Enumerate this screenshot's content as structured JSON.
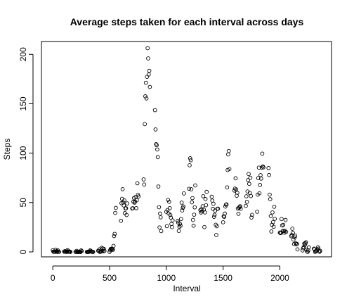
{
  "chart_data": {
    "type": "scatter",
    "title": "Average steps taken for each interval across days",
    "xlabel": "Interval",
    "ylabel": "Steps",
    "xlim": [
      -100,
      2455
    ],
    "ylim": [
      -5,
      213
    ],
    "xticks": [
      0,
      500,
      1000,
      1500,
      2000
    ],
    "yticks": [
      0,
      50,
      100,
      150,
      200
    ],
    "marker": "open-circle",
    "grid": false,
    "legend": "none",
    "points": [
      [
        0,
        1.7
      ],
      [
        5,
        0.3
      ],
      [
        10,
        0.1
      ],
      [
        15,
        0.2
      ],
      [
        20,
        0.1
      ],
      [
        25,
        2.1
      ],
      [
        30,
        0.5
      ],
      [
        35,
        0.9
      ],
      [
        40,
        0
      ],
      [
        45,
        1.5
      ],
      [
        50,
        0.3
      ],
      [
        55,
        0.1
      ],
      [
        100,
        0.3
      ],
      [
        105,
        0.7
      ],
      [
        110,
        0.2
      ],
      [
        115,
        0.3
      ],
      [
        120,
        0
      ],
      [
        125,
        1.1
      ],
      [
        130,
        1.8
      ],
      [
        135,
        0.2
      ],
      [
        140,
        0.2
      ],
      [
        145,
        0.4
      ],
      [
        150,
        0.3
      ],
      [
        155,
        0
      ],
      [
        200,
        0
      ],
      [
        205,
        0
      ],
      [
        210,
        1.1
      ],
      [
        215,
        0
      ],
      [
        220,
        0
      ],
      [
        225,
        0.1
      ],
      [
        230,
        0
      ],
      [
        235,
        0.2
      ],
      [
        240,
        0
      ],
      [
        245,
        0
      ],
      [
        250,
        1.5
      ],
      [
        255,
        0.9
      ],
      [
        300,
        0
      ],
      [
        305,
        0
      ],
      [
        310,
        0
      ],
      [
        315,
        0
      ],
      [
        320,
        0.2
      ],
      [
        325,
        0.6
      ],
      [
        330,
        1.6
      ],
      [
        335,
        0.6
      ],
      [
        340,
        0.5
      ],
      [
        345,
        0.1
      ],
      [
        350,
        0
      ],
      [
        355,
        0
      ],
      [
        400,
        1.2
      ],
      [
        405,
        0.9
      ],
      [
        410,
        2.6
      ],
      [
        415,
        0
      ],
      [
        420,
        0.3
      ],
      [
        425,
        0.4
      ],
      [
        430,
        4.1
      ],
      [
        435,
        0.7
      ],
      [
        440,
        3.5
      ],
      [
        445,
        0.8
      ],
      [
        450,
        3.1
      ],
      [
        455,
        1.1
      ],
      [
        500,
        0
      ],
      [
        505,
        1.6
      ],
      [
        510,
        3
      ],
      [
        515,
        2.2
      ],
      [
        520,
        3.3
      ],
      [
        525,
        3
      ],
      [
        530,
        2.1
      ],
      [
        535,
        6.1
      ],
      [
        540,
        16
      ],
      [
        545,
        18.3
      ],
      [
        550,
        39.5
      ],
      [
        555,
        44.5
      ],
      [
        600,
        31.5
      ],
      [
        605,
        49.3
      ],
      [
        610,
        53.8
      ],
      [
        615,
        63.5
      ],
      [
        620,
        50
      ],
      [
        625,
        47.1
      ],
      [
        630,
        52.2
      ],
      [
        635,
        39.3
      ],
      [
        640,
        44
      ],
      [
        645,
        44.2
      ],
      [
        650,
        37.4
      ],
      [
        655,
        49.1
      ],
      [
        700,
        44
      ],
      [
        705,
        44.2
      ],
      [
        710,
        50.8
      ],
      [
        715,
        54.5
      ],
      [
        720,
        49.9
      ],
      [
        725,
        50.9
      ],
      [
        730,
        55.7
      ],
      [
        735,
        44.3
      ],
      [
        740,
        52.3
      ],
      [
        745,
        69.5
      ],
      [
        750,
        57.8
      ],
      [
        755,
        56.2
      ],
      [
        800,
        73.4
      ],
      [
        805,
        68.2
      ],
      [
        810,
        129.4
      ],
      [
        815,
        157.5
      ],
      [
        820,
        171.2
      ],
      [
        825,
        155.4
      ],
      [
        830,
        177.3
      ],
      [
        835,
        206.2
      ],
      [
        840,
        195.9
      ],
      [
        845,
        179.6
      ],
      [
        850,
        183.4
      ],
      [
        855,
        167
      ],
      [
        900,
        143.5
      ],
      [
        905,
        124
      ],
      [
        910,
        109.1
      ],
      [
        915,
        108.1
      ],
      [
        920,
        103.7
      ],
      [
        925,
        95.97
      ],
      [
        930,
        66.2
      ],
      [
        935,
        45.2
      ],
      [
        940,
        24.8
      ],
      [
        945,
        38.8
      ],
      [
        950,
        35
      ],
      [
        955,
        21.1
      ],
      [
        1000,
        40.6
      ],
      [
        1005,
        26.1
      ],
      [
        1010,
        42.4
      ],
      [
        1015,
        52.7
      ],
      [
        1020,
        38.9
      ],
      [
        1025,
        50.8
      ],
      [
        1030,
        44.3
      ],
      [
        1035,
        37.4
      ],
      [
        1040,
        34.7
      ],
      [
        1045,
        28.3
      ],
      [
        1050,
        25.1
      ],
      [
        1055,
        31.9
      ],
      [
        1100,
        31.4
      ],
      [
        1105,
        29.7
      ],
      [
        1110,
        21.3
      ],
      [
        1115,
        25.5
      ],
      [
        1120,
        28.4
      ],
      [
        1125,
        26.5
      ],
      [
        1130,
        33.4
      ],
      [
        1135,
        49.9
      ],
      [
        1140,
        42
      ],
      [
        1145,
        44.6
      ],
      [
        1150,
        46
      ],
      [
        1155,
        59.2
      ],
      [
        1200,
        63.9
      ],
      [
        1205,
        87.7
      ],
      [
        1210,
        94.8
      ],
      [
        1215,
        92.8
      ],
      [
        1220,
        63.4
      ],
      [
        1225,
        50.2
      ],
      [
        1230,
        54.5
      ],
      [
        1235,
        32.4
      ],
      [
        1240,
        26.5
      ],
      [
        1245,
        37.7
      ],
      [
        1250,
        45.1
      ],
      [
        1255,
        67.3
      ],
      [
        1300,
        42.3
      ],
      [
        1305,
        39.9
      ],
      [
        1310,
        43.3
      ],
      [
        1315,
        40.98
      ],
      [
        1320,
        46.2
      ],
      [
        1325,
        56.4
      ],
      [
        1330,
        42.8
      ],
      [
        1335,
        25.1
      ],
      [
        1340,
        39.96
      ],
      [
        1345,
        53.5
      ],
      [
        1350,
        47.3
      ],
      [
        1355,
        60.8
      ],
      [
        1400,
        55.8
      ],
      [
        1405,
        51.96
      ],
      [
        1410,
        43.6
      ],
      [
        1415,
        48.7
      ],
      [
        1420,
        35.5
      ],
      [
        1425,
        37.5
      ],
      [
        1430,
        41.8
      ],
      [
        1435,
        27.5
      ],
      [
        1440,
        17.1
      ],
      [
        1445,
        26.1
      ],
      [
        1450,
        43.6
      ],
      [
        1455,
        43.8
      ],
      [
        1500,
        30
      ],
      [
        1505,
        36.1
      ],
      [
        1510,
        35.5
      ],
      [
        1515,
        38.8
      ],
      [
        1520,
        45.96
      ],
      [
        1525,
        47.8
      ],
      [
        1530,
        48.1
      ],
      [
        1535,
        65.3
      ],
      [
        1540,
        82.9
      ],
      [
        1545,
        98.7
      ],
      [
        1550,
        102.1
      ],
      [
        1555,
        83.96
      ],
      [
        1600,
        62.1
      ],
      [
        1605,
        64.1
      ],
      [
        1610,
        74.5
      ],
      [
        1615,
        63.2
      ],
      [
        1620,
        56.9
      ],
      [
        1625,
        59.8
      ],
      [
        1630,
        43.9
      ],
      [
        1635,
        38.6
      ],
      [
        1640,
        44.7
      ],
      [
        1645,
        45.5
      ],
      [
        1650,
        46.2
      ],
      [
        1655,
        43.7
      ],
      [
        1700,
        46.6
      ],
      [
        1705,
        56.3
      ],
      [
        1710,
        50.7
      ],
      [
        1715,
        61.2
      ],
      [
        1720,
        72.7
      ],
      [
        1725,
        78.9
      ],
      [
        1730,
        68.9
      ],
      [
        1735,
        59.7
      ],
      [
        1740,
        75.1
      ],
      [
        1745,
        56.5
      ],
      [
        1750,
        34.8
      ],
      [
        1755,
        37.5
      ],
      [
        1800,
        40.7
      ],
      [
        1805,
        58
      ],
      [
        1810,
        74.7
      ],
      [
        1815,
        85.3
      ],
      [
        1820,
        59.3
      ],
      [
        1825,
        67.8
      ],
      [
        1830,
        77.7
      ],
      [
        1835,
        74.2
      ],
      [
        1840,
        85.3
      ],
      [
        1845,
        99.5
      ],
      [
        1850,
        86.6
      ],
      [
        1855,
        85.6
      ],
      [
        1900,
        84.9
      ],
      [
        1905,
        77.8
      ],
      [
        1910,
        58
      ],
      [
        1915,
        53.4
      ],
      [
        1920,
        36.3
      ],
      [
        1925,
        20.7
      ],
      [
        1930,
        27.4
      ],
      [
        1935,
        40
      ],
      [
        1940,
        30.2
      ],
      [
        1945,
        25.5
      ],
      [
        1950,
        45.7
      ],
      [
        1955,
        33.5
      ],
      [
        2000,
        19.6
      ],
      [
        2005,
        19
      ],
      [
        2010,
        19.3
      ],
      [
        2015,
        33.3
      ],
      [
        2020,
        26.8
      ],
      [
        2025,
        21.2
      ],
      [
        2030,
        27.3
      ],
      [
        2035,
        21.3
      ],
      [
        2040,
        19.5
      ],
      [
        2045,
        21.3
      ],
      [
        2050,
        32.3
      ],
      [
        2055,
        20.2
      ],
      [
        2100,
        15.9
      ],
      [
        2105,
        17.2
      ],
      [
        2110,
        23.5
      ],
      [
        2115,
        19.2
      ],
      [
        2120,
        12.5
      ],
      [
        2125,
        8
      ],
      [
        2130,
        14.7
      ],
      [
        2135,
        16.3
      ],
      [
        2140,
        8.7
      ],
      [
        2145,
        7.8
      ],
      [
        2150,
        8.1
      ],
      [
        2155,
        2.6
      ],
      [
        2200,
        1.5
      ],
      [
        2205,
        3.7
      ],
      [
        2210,
        4.8
      ],
      [
        2215,
        8.5
      ],
      [
        2220,
        7.1
      ],
      [
        2225,
        8.7
      ],
      [
        2230,
        9.8
      ],
      [
        2235,
        2.2
      ],
      [
        2240,
        0.3
      ],
      [
        2245,
        0.1
      ],
      [
        2250,
        1.6
      ],
      [
        2255,
        4.6
      ],
      [
        2300,
        3.3
      ],
      [
        2305,
        2.8
      ],
      [
        2310,
        0
      ],
      [
        2315,
        0.8
      ],
      [
        2320,
        0.96
      ],
      [
        2325,
        1.6
      ],
      [
        2330,
        2.6
      ],
      [
        2335,
        4.7
      ],
      [
        2340,
        3.3
      ],
      [
        2345,
        0.6
      ],
      [
        2350,
        0.2
      ],
      [
        2355,
        1.1
      ]
    ]
  }
}
